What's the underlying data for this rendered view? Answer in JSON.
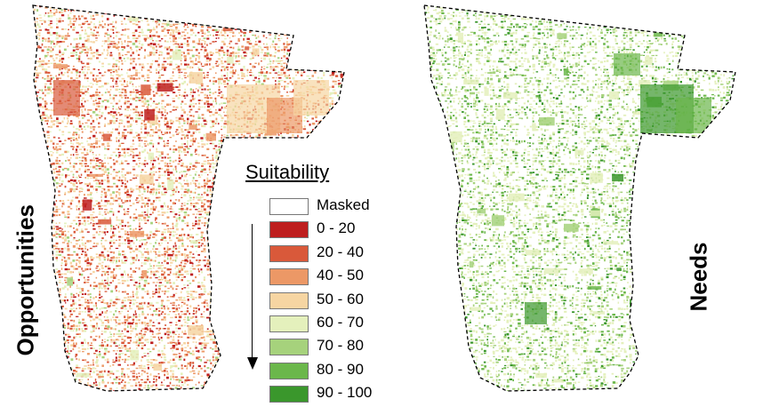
{
  "panels": {
    "left_label": "Opportunities",
    "right_label": "Needs"
  },
  "legend": {
    "title": "Suitability",
    "items": [
      {
        "label": "Masked",
        "color": "#ffffff"
      },
      {
        "label": "0 - 20",
        "color": "#be1e1e"
      },
      {
        "label": "20 - 40",
        "color": "#d9593a"
      },
      {
        "label": "40 - 50",
        "color": "#ec9866"
      },
      {
        "label": "50 - 60",
        "color": "#f6d5a2"
      },
      {
        "label": "60 - 70",
        "color": "#e4f0bc"
      },
      {
        "label": "70 - 80",
        "color": "#a6d27c"
      },
      {
        "label": "80 - 90",
        "color": "#6bb74b"
      },
      {
        "label": "90 - 100",
        "color": "#3a972c"
      }
    ]
  },
  "colors": {
    "boundary": "#000000",
    "opportunity_palette": [
      "#be1e1e",
      "#d9593a",
      "#ec9866",
      "#f6d5a2",
      "#e4f0bc",
      "#a6d27c"
    ],
    "needs_palette": [
      "#e4f0bc",
      "#a6d27c",
      "#6bb74b",
      "#3a972c"
    ]
  }
}
